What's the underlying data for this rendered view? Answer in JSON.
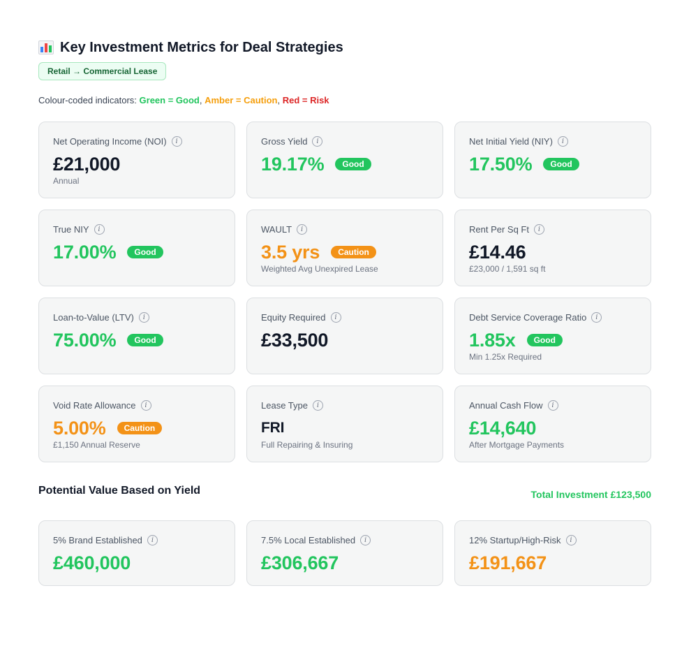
{
  "header": {
    "title": "Key Investment Metrics for Deal Strategies",
    "tag": "Retail → Commercial Lease",
    "legend_prefix": "Colour-coded indicators: ",
    "legend_green": "Green = Good",
    "legend_amber": "Amber = Caution",
    "legend_red": "Red = Risk",
    "legend_sep": ", "
  },
  "metrics": [
    {
      "label": "Net Operating Income (NOI)",
      "value": "£21,000",
      "sub": "Annual"
    },
    {
      "label": "Gross Yield",
      "value": "19.17%",
      "badge": "Good"
    },
    {
      "label": "Net Initial Yield (NIY)",
      "value": "17.50%",
      "badge": "Good"
    },
    {
      "label": "True NIY",
      "value": "17.00%",
      "badge": "Good"
    },
    {
      "label": "WAULT",
      "value": "3.5 yrs",
      "badge": "Caution",
      "sub": "Weighted Avg Unexpired Lease"
    },
    {
      "label": "Rent Per Sq Ft",
      "value": "£14.46",
      "sub": "£23,000 / 1,591 sq ft"
    },
    {
      "label": "Loan-to-Value (LTV)",
      "value": "75.00%",
      "badge": "Good"
    },
    {
      "label": "Equity Required",
      "value": "£33,500"
    },
    {
      "label": "Debt Service Coverage Ratio",
      "value": "1.85x",
      "badge": "Good",
      "sub": "Min 1.25x Required"
    },
    {
      "label": "Void Rate Allowance",
      "value": "5.00%",
      "badge": "Caution",
      "sub": "£1,150 Annual Reserve"
    },
    {
      "label": "Lease Type",
      "value": "FRI",
      "sub": "Full Repairing & Insuring"
    },
    {
      "label": "Annual Cash Flow",
      "value": "£14,640",
      "sub": "After Mortgage Payments"
    }
  ],
  "valuation": {
    "title": "Potential Value Based on Yield",
    "total": "Total Investment £123,500",
    "items": [
      {
        "label": "5% Brand Established",
        "value": "£460,000"
      },
      {
        "label": "7.5% Local Established",
        "value": "£306,667"
      },
      {
        "label": "12% Startup/High-Risk",
        "value": "£191,667"
      }
    ]
  },
  "colors": {
    "good": "#22c55e",
    "caution": "#f39217",
    "risk": "#dc2626",
    "neutral": "#111827"
  },
  "icons": {
    "title": "bar-chart-icon",
    "info": "info-icon"
  }
}
